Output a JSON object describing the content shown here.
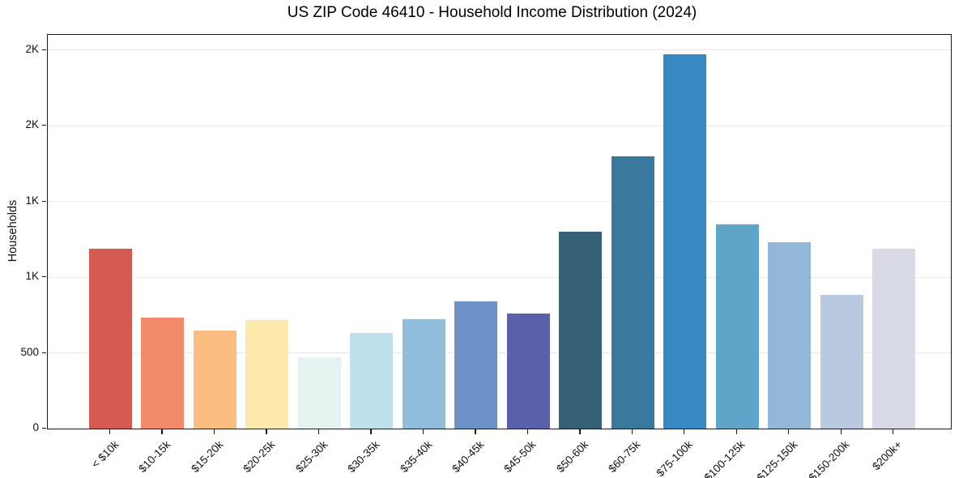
{
  "chart_data": {
    "type": "bar",
    "title": "US ZIP Code 46410 - Household Income Distribution (2024)",
    "xlabel": "",
    "ylabel": "Households",
    "ylim": [
      0,
      2600
    ],
    "grid": true,
    "legend": false,
    "categories": [
      "< $10k",
      "$10-15k",
      "$15-20k",
      "$20-25k",
      "$25-30k",
      "$30-35k",
      "$35-40k",
      "$40-45k",
      "$45-50k",
      "$50-60k",
      "$60-75k",
      "$75-100k",
      "$100-125k",
      "$125-150k",
      "$150-200k",
      "$200k+"
    ],
    "values": [
      1190,
      735,
      650,
      715,
      470,
      630,
      720,
      840,
      760,
      1300,
      1800,
      2470,
      1350,
      1230,
      885,
      1190
    ],
    "bar_colors": [
      "#d65a51",
      "#f38b6a",
      "#fcbd80",
      "#fde9a9",
      "#e4f3f1",
      "#bfe1ed",
      "#90bddc",
      "#6c93c7",
      "#5a60a9",
      "#33607456",
      "#38789e",
      "#368ac1",
      "#5fa5ca",
      "#92b6d8",
      "#bac9df",
      "#d8dae6"
    ],
    "bar_colors_fixed": [
      "#d65a51",
      "#f38b6a",
      "#fcbd80",
      "#fde9a9",
      "#e4f3f1",
      "#bfe1ed",
      "#90bddc",
      "#6c93c7",
      "#5a60a9",
      "#336074",
      "#38789e",
      "#368ac1",
      "#5fa5ca",
      "#92b6d8",
      "#bac9df",
      "#d8dae6"
    ],
    "yticks": [
      {
        "value": 0,
        "label": "0"
      },
      {
        "value": 500,
        "label": "500"
      },
      {
        "value": 1000,
        "label": "1K"
      },
      {
        "value": 1500,
        "label": "1K"
      },
      {
        "value": 2000,
        "label": "2K"
      },
      {
        "value": 2500,
        "label": "2K"
      }
    ],
    "axis_color": "#1a1a1a",
    "grid_color": "#e9e9f0"
  }
}
